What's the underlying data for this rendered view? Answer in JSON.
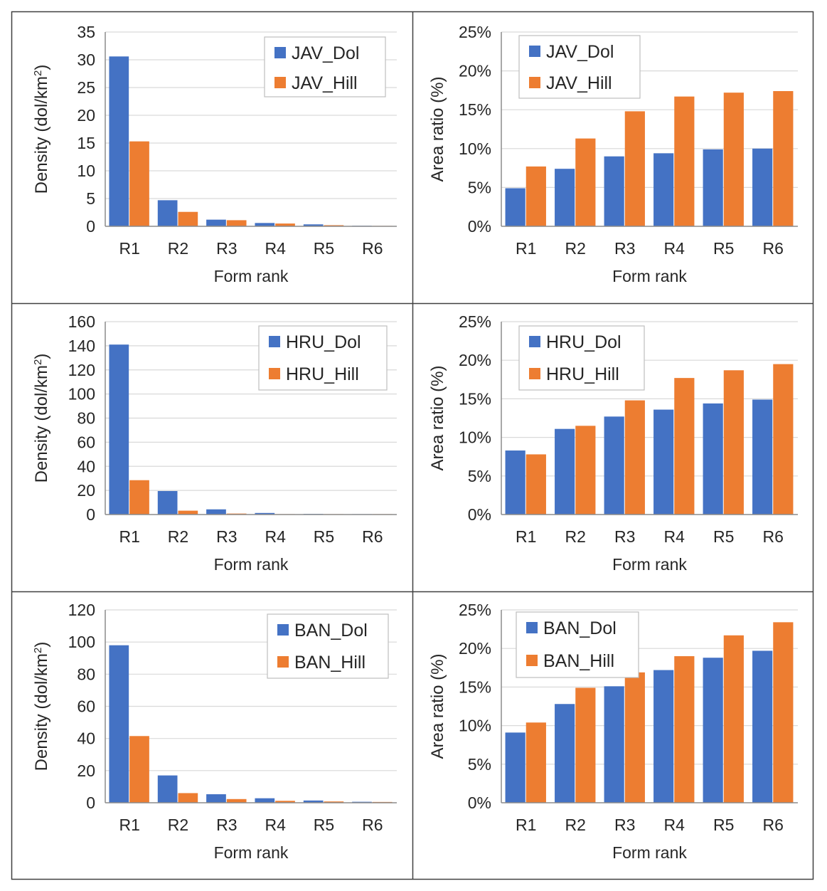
{
  "colors": {
    "dol": "#4472C4",
    "hill": "#ED7D31",
    "grid": "#d9d9d9",
    "axis": "#8c8c8c",
    "border": "#404040"
  },
  "chart_data": [
    {
      "type": "bar",
      "title": "",
      "xlabel": "Form rank",
      "ylabel": "Density (dol/km²)",
      "ylabel_base": "Density (dol/km",
      "ylabel_sup": "2",
      "ylabel_end": ")",
      "categories": [
        "R1",
        "R2",
        "R3",
        "R4",
        "R5",
        "R6"
      ],
      "series": [
        {
          "name": "JAV_Dol",
          "values": [
            30.6,
            4.7,
            1.2,
            0.6,
            0.35,
            0.1
          ]
        },
        {
          "name": "JAV_Hill",
          "values": [
            15.3,
            2.6,
            1.1,
            0.5,
            0.2,
            0.05
          ]
        }
      ],
      "ylim": [
        0,
        35
      ],
      "yticks": [
        0,
        5,
        10,
        15,
        20,
        25,
        30,
        35
      ],
      "ytick_labels": [
        "0",
        "5",
        "10",
        "15",
        "20",
        "25",
        "30",
        "35"
      ],
      "grid": true,
      "legend": "top-right"
    },
    {
      "type": "bar",
      "title": "",
      "xlabel": "Form rank",
      "ylabel": "Area ratio (%)",
      "categories": [
        "R1",
        "R2",
        "R3",
        "R4",
        "R5",
        "R6"
      ],
      "series": [
        {
          "name": "JAV_Dol",
          "values": [
            0.049,
            0.074,
            0.09,
            0.094,
            0.099,
            0.1
          ]
        },
        {
          "name": "JAV_Hill",
          "values": [
            0.077,
            0.113,
            0.148,
            0.167,
            0.172,
            0.174
          ]
        }
      ],
      "ylim": [
        0,
        0.25
      ],
      "yticks": [
        0,
        0.05,
        0.1,
        0.15,
        0.2,
        0.25
      ],
      "ytick_labels": [
        "0%",
        "5%",
        "10%",
        "15%",
        "20%",
        "25%"
      ],
      "grid": true,
      "legend": "top-left"
    },
    {
      "type": "bar",
      "title": "",
      "xlabel": "Form rank",
      "ylabel": "Density (dol/km²)",
      "ylabel_base": "Density (dol/km",
      "ylabel_sup": "2",
      "ylabel_end": ")",
      "categories": [
        "R1",
        "R2",
        "R3",
        "R4",
        "R5",
        "R6"
      ],
      "series": [
        {
          "name": "HRU_Dol",
          "values": [
            141,
            19.5,
            4.3,
            1.3,
            0.5,
            0.1
          ]
        },
        {
          "name": "HRU_Hill",
          "values": [
            28.5,
            3.2,
            0.8,
            0.2,
            0.1,
            0.05
          ]
        }
      ],
      "ylim": [
        0,
        160
      ],
      "yticks": [
        0,
        20,
        40,
        60,
        80,
        100,
        120,
        140,
        160
      ],
      "ytick_labels": [
        "0",
        "20",
        "40",
        "60",
        "80",
        "100",
        "120",
        "140",
        "160"
      ],
      "grid": true,
      "legend": "top-right"
    },
    {
      "type": "bar",
      "title": "",
      "xlabel": "Form rank",
      "ylabel": "Area ratio (%)",
      "categories": [
        "R1",
        "R2",
        "R3",
        "R4",
        "R5",
        "R6"
      ],
      "series": [
        {
          "name": "HRU_Dol",
          "values": [
            0.083,
            0.111,
            0.127,
            0.136,
            0.144,
            0.149
          ]
        },
        {
          "name": "HRU_Hill",
          "values": [
            0.078,
            0.115,
            0.148,
            0.177,
            0.187,
            0.195
          ]
        }
      ],
      "ylim": [
        0,
        0.25
      ],
      "yticks": [
        0,
        0.05,
        0.1,
        0.15,
        0.2,
        0.25
      ],
      "ytick_labels": [
        "0%",
        "5%",
        "10%",
        "15%",
        "20%",
        "25%"
      ],
      "grid": true,
      "legend": "top-left"
    },
    {
      "type": "bar",
      "title": "",
      "xlabel": "Form rank",
      "ylabel": "Density (dol/km²)",
      "ylabel_base": "Density (dol/km",
      "ylabel_sup": "2",
      "ylabel_end": ")",
      "categories": [
        "R1",
        "R2",
        "R3",
        "R4",
        "R5",
        "R6"
      ],
      "series": [
        {
          "name": "BAN_Dol",
          "values": [
            98,
            17,
            5.3,
            2.8,
            1.4,
            0.6
          ]
        },
        {
          "name": "BAN_Hill",
          "values": [
            41.5,
            6,
            2.3,
            1.2,
            0.8,
            0.5
          ]
        }
      ],
      "ylim": [
        0,
        120
      ],
      "yticks": [
        0,
        20,
        40,
        60,
        80,
        100,
        120
      ],
      "ytick_labels": [
        "0",
        "20",
        "40",
        "60",
        "80",
        "100",
        "120"
      ],
      "grid": true,
      "legend": "top-right"
    },
    {
      "type": "bar",
      "title": "",
      "xlabel": "Form rank",
      "ylabel": "Area ratio (%)",
      "categories": [
        "R1",
        "R2",
        "R3",
        "R4",
        "R5",
        "R6"
      ],
      "series": [
        {
          "name": "BAN_Dol",
          "values": [
            0.091,
            0.128,
            0.151,
            0.172,
            0.188,
            0.197
          ]
        },
        {
          "name": "BAN_Hill",
          "values": [
            0.104,
            0.149,
            0.169,
            0.19,
            0.217,
            0.234
          ]
        }
      ],
      "ylim": [
        0,
        0.25
      ],
      "yticks": [
        0,
        0.05,
        0.1,
        0.15,
        0.2,
        0.25
      ],
      "ytick_labels": [
        "0%",
        "5%",
        "10%",
        "15%",
        "20%",
        "25%"
      ],
      "grid": true,
      "legend": "top-left"
    }
  ]
}
